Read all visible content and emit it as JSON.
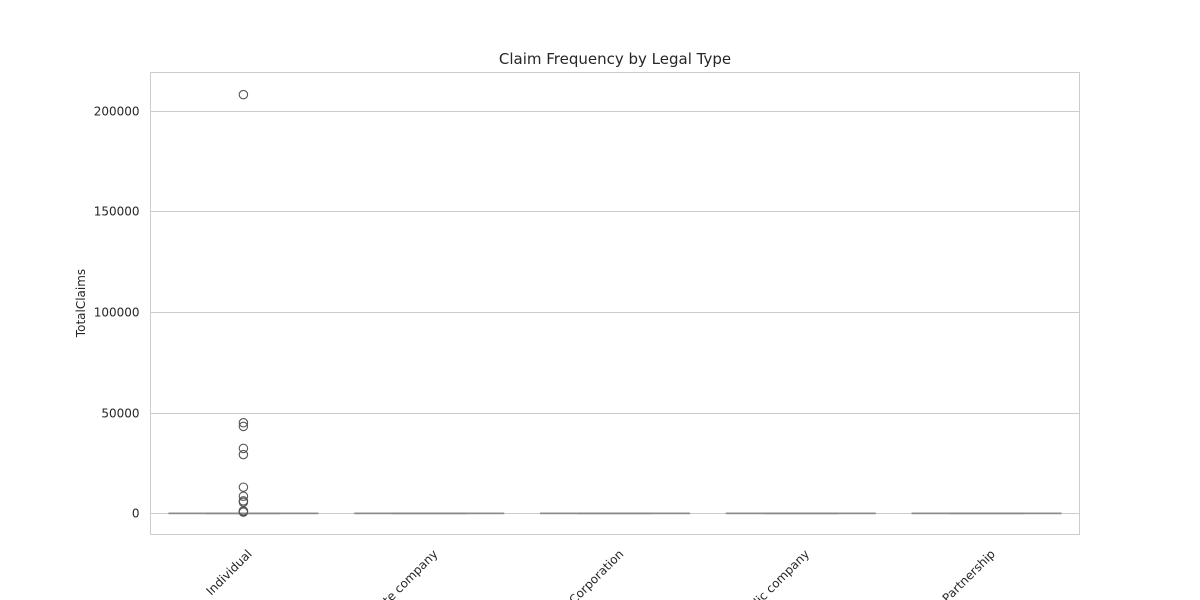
{
  "chart_data": {
    "type": "box",
    "title": "Claim Frequency by Legal Type",
    "xlabel": "",
    "ylabel": "TotalClaims",
    "categories": [
      "Individual",
      "Private company",
      "Corporation",
      "Public company",
      "Partnership"
    ],
    "ylim": [
      -10500,
      219000
    ],
    "yticks": [
      0,
      50000,
      100000,
      150000,
      200000
    ],
    "grid": "horizontal",
    "box_color": "#8a8a8a",
    "boxes": [
      {
        "category": "Individual",
        "q1": 0,
        "median": 0,
        "q3": 0,
        "whisker_low": 0,
        "whisker_high": 0,
        "outliers": [
          208000,
          45000,
          43200,
          32300,
          29200,
          13000,
          8500,
          6200,
          5500,
          1200,
          900,
          600
        ]
      },
      {
        "category": "Private company",
        "q1": 0,
        "median": 0,
        "q3": 0,
        "whisker_low": 0,
        "whisker_high": 0,
        "outliers": []
      },
      {
        "category": "Corporation",
        "q1": 0,
        "median": 0,
        "q3": 0,
        "whisker_low": 0,
        "whisker_high": 0,
        "outliers": []
      },
      {
        "category": "Public company",
        "q1": 0,
        "median": 0,
        "q3": 0,
        "whisker_low": 0,
        "whisker_high": 0,
        "outliers": []
      },
      {
        "category": "Partnership",
        "q1": 0,
        "median": 0,
        "q3": 0,
        "whisker_low": 0,
        "whisker_high": 0,
        "outliers": []
      }
    ]
  }
}
